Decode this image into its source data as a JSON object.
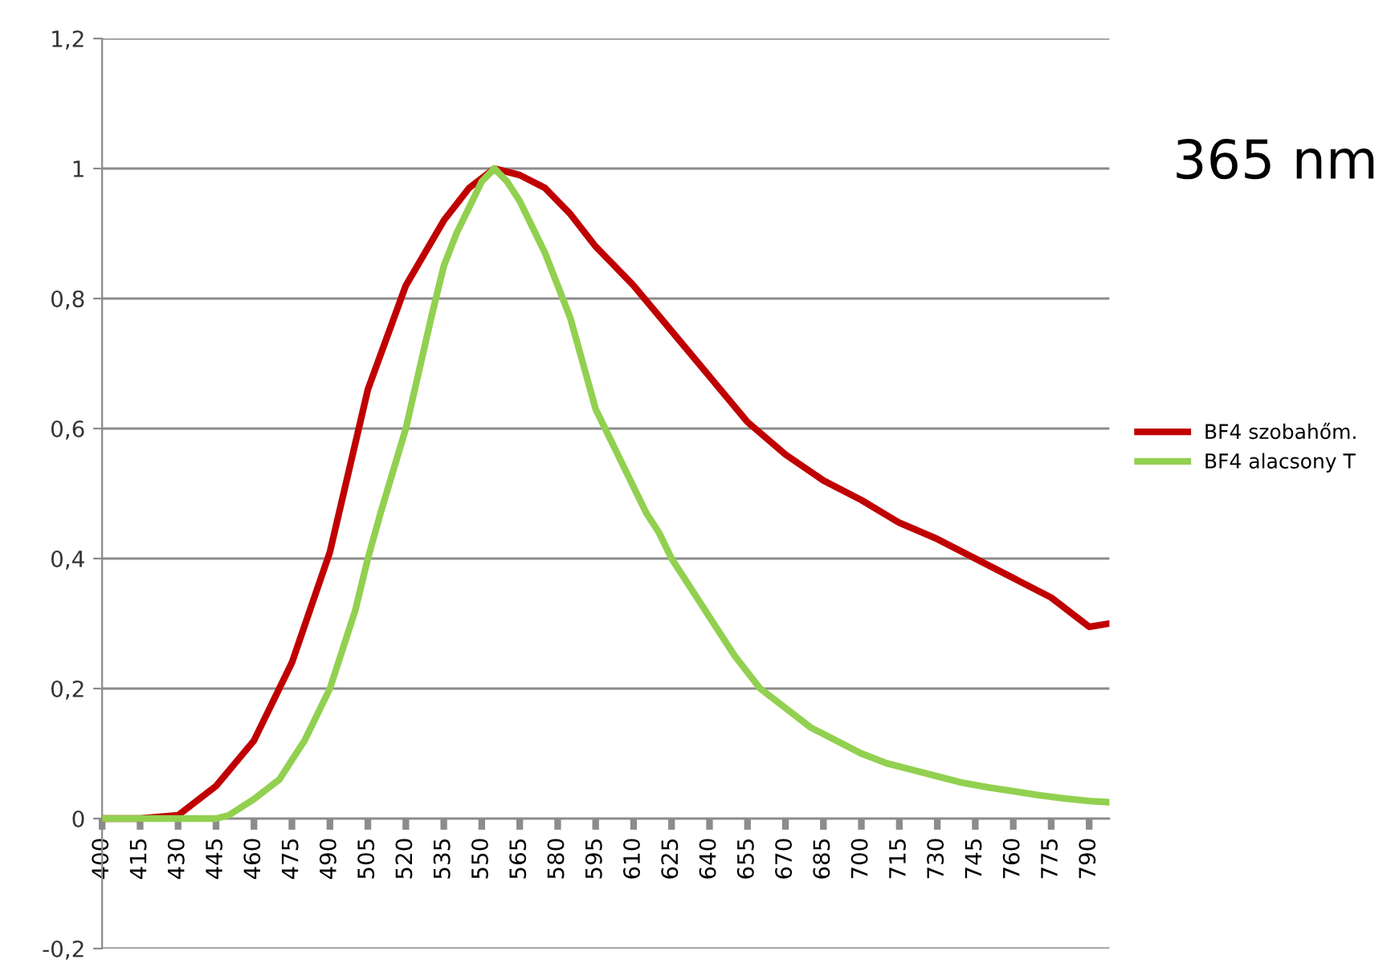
{
  "chart_data": {
    "type": "line",
    "annotations": [
      "365 nm"
    ],
    "xlim": [
      400,
      798
    ],
    "xticks": [
      400,
      415,
      430,
      445,
      460,
      475,
      490,
      505,
      520,
      535,
      550,
      565,
      580,
      595,
      610,
      625,
      640,
      655,
      670,
      685,
      700,
      715,
      730,
      745,
      760,
      775,
      790
    ],
    "ylim": [
      -0.2,
      1.2
    ],
    "yticks": [
      {
        "value": -0.2,
        "label": "-0,2"
      },
      0,
      {
        "value": 0.2,
        "label": "0,2"
      },
      {
        "value": 0.4,
        "label": "0,4"
      },
      {
        "value": 0.6,
        "label": "0,6"
      },
      {
        "value": 0.8,
        "label": "0,8"
      },
      1,
      {
        "value": 1.2,
        "label": "1,2"
      }
    ],
    "grid": "y",
    "legend": "right",
    "marker": "none",
    "line_style": "solid",
    "series": [
      {
        "name": "BF4 szobahőm.",
        "color": "#c00000",
        "x": [
          400,
          415,
          430,
          445,
          460,
          475,
          490,
          505,
          520,
          535,
          545,
          555,
          565,
          575,
          585,
          595,
          610,
          625,
          640,
          655,
          670,
          685,
          700,
          715,
          730,
          745,
          760,
          775,
          785,
          790,
          798
        ],
        "values": [
          0,
          0,
          0.005,
          0.05,
          0.12,
          0.24,
          0.41,
          0.66,
          0.82,
          0.92,
          0.97,
          1.0,
          0.99,
          0.97,
          0.93,
          0.88,
          0.82,
          0.75,
          0.68,
          0.61,
          0.56,
          0.52,
          0.49,
          0.455,
          0.43,
          0.4,
          0.37,
          0.34,
          0.31,
          0.295,
          0.3
        ]
      },
      {
        "name": "BF4 alacsony T",
        "color": "#92d050",
        "x": [
          400,
          445,
          450,
          460,
          470,
          475,
          480,
          490,
          500,
          505,
          510,
          520,
          530,
          535,
          540,
          550,
          555,
          560,
          565,
          570,
          575,
          580,
          585,
          590,
          595,
          600,
          605,
          610,
          615,
          620,
          625,
          630,
          640,
          650,
          660,
          670,
          680,
          690,
          700,
          710,
          720,
          730,
          740,
          750,
          760,
          770,
          780,
          790,
          798
        ],
        "values": [
          0,
          0,
          0.005,
          0.03,
          0.06,
          0.09,
          0.12,
          0.2,
          0.32,
          0.4,
          0.47,
          0.6,
          0.77,
          0.85,
          0.9,
          0.98,
          1.0,
          0.98,
          0.95,
          0.91,
          0.87,
          0.82,
          0.77,
          0.7,
          0.63,
          0.59,
          0.55,
          0.51,
          0.47,
          0.44,
          0.4,
          0.37,
          0.31,
          0.25,
          0.2,
          0.17,
          0.14,
          0.12,
          0.1,
          0.085,
          0.075,
          0.065,
          0.055,
          0.048,
          0.042,
          0.036,
          0.031,
          0.027,
          0.025
        ]
      }
    ]
  }
}
